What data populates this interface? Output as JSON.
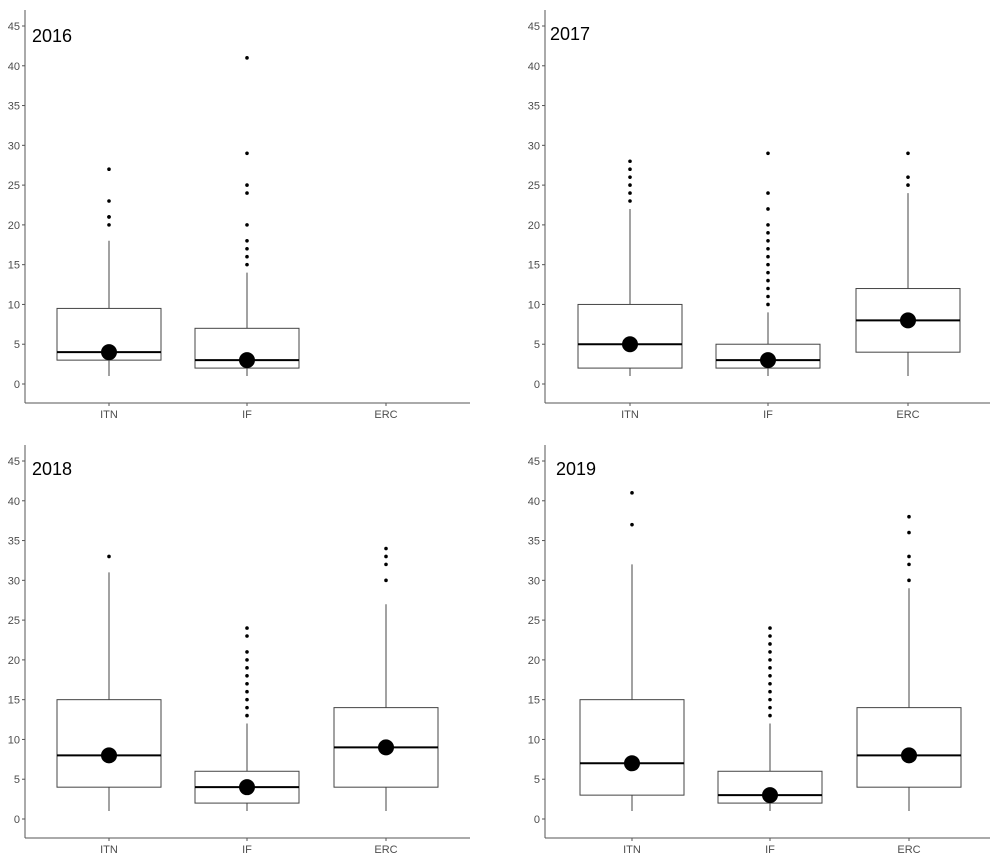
{
  "figure": {
    "background": "#ffffff",
    "box_stroke": "#444444",
    "median_color": "#000000",
    "mean_marker_color": "#000000",
    "outlier_color": "#000000",
    "axis_color": "#555555"
  },
  "chart_data": [
    {
      "type": "box",
      "panel_label": "2016",
      "categories": [
        "ITN",
        "IF",
        "ERC"
      ],
      "ylim": [
        -2,
        47
      ],
      "yticks": [
        0,
        5,
        10,
        15,
        20,
        25,
        30,
        35,
        40,
        45
      ],
      "grid": false,
      "boxes": [
        {
          "category": "ITN",
          "whisker_low": 1,
          "q1": 3,
          "median": 4,
          "q3": 9.5,
          "whisker_high": 18,
          "mean": 4,
          "outliers": [
            20,
            21,
            21,
            23,
            27
          ]
        },
        {
          "category": "IF",
          "whisker_low": 1,
          "q1": 2,
          "median": 3,
          "q3": 7,
          "whisker_high": 14,
          "mean": 3,
          "outliers": [
            15,
            16,
            17,
            18,
            20,
            24,
            25,
            29,
            41
          ]
        },
        {
          "category": "ERC",
          "whisker_low": null,
          "q1": null,
          "median": null,
          "q3": null,
          "whisker_high": null,
          "mean": null,
          "outliers": []
        }
      ]
    },
    {
      "type": "box",
      "panel_label": "2017",
      "categories": [
        "ITN",
        "IF",
        "ERC"
      ],
      "ylim": [
        -2,
        47
      ],
      "yticks": [
        0,
        5,
        10,
        15,
        20,
        25,
        30,
        35,
        40,
        45
      ],
      "grid": false,
      "boxes": [
        {
          "category": "ITN",
          "whisker_low": 1,
          "q1": 2,
          "median": 5,
          "q3": 10,
          "whisker_high": 22,
          "mean": 5,
          "outliers": [
            23,
            24,
            25,
            26,
            27,
            28
          ]
        },
        {
          "category": "IF",
          "whisker_low": 1,
          "q1": 2,
          "median": 3,
          "q3": 5,
          "whisker_high": 9,
          "mean": 3,
          "outliers": [
            10,
            11,
            12,
            13,
            14,
            15,
            16,
            17,
            18,
            19,
            20,
            22,
            24,
            29
          ]
        },
        {
          "category": "ERC",
          "whisker_low": 1,
          "q1": 4,
          "median": 8,
          "q3": 12,
          "whisker_high": 24,
          "mean": 8,
          "outliers": [
            25,
            26,
            29
          ]
        }
      ]
    },
    {
      "type": "box",
      "panel_label": "2018",
      "categories": [
        "ITN",
        "IF",
        "ERC"
      ],
      "ylim": [
        -2,
        47
      ],
      "yticks": [
        0,
        5,
        10,
        15,
        20,
        25,
        30,
        35,
        40,
        45
      ],
      "grid": false,
      "boxes": [
        {
          "category": "ITN",
          "whisker_low": 1,
          "q1": 4,
          "median": 8,
          "q3": 15,
          "whisker_high": 31,
          "mean": 8,
          "outliers": [
            33
          ]
        },
        {
          "category": "IF",
          "whisker_low": 1,
          "q1": 2,
          "median": 4,
          "q3": 6,
          "whisker_high": 12,
          "mean": 4,
          "outliers": [
            13,
            14,
            15,
            16,
            17,
            18,
            19,
            20,
            21,
            23,
            24
          ]
        },
        {
          "category": "ERC",
          "whisker_low": 1,
          "q1": 4,
          "median": 9,
          "q3": 14,
          "whisker_high": 27,
          "mean": 9,
          "outliers": [
            30,
            32,
            33,
            34
          ]
        }
      ]
    },
    {
      "type": "box",
      "panel_label": "2019",
      "categories": [
        "ITN",
        "IF",
        "ERC"
      ],
      "ylim": [
        -2,
        47
      ],
      "yticks": [
        0,
        5,
        10,
        15,
        20,
        25,
        30,
        35,
        40,
        45
      ],
      "grid": false,
      "boxes": [
        {
          "category": "ITN",
          "whisker_low": 1,
          "q1": 3,
          "median": 7,
          "q3": 15,
          "whisker_high": 32,
          "mean": 7,
          "outliers": [
            37,
            41
          ]
        },
        {
          "category": "IF",
          "whisker_low": 1,
          "q1": 2,
          "median": 3,
          "q3": 6,
          "whisker_high": 12,
          "mean": 3,
          "outliers": [
            13,
            14,
            15,
            16,
            17,
            18,
            19,
            20,
            21,
            22,
            23,
            24
          ]
        },
        {
          "category": "ERC",
          "whisker_low": 1,
          "q1": 4,
          "median": 8,
          "q3": 14,
          "whisker_high": 29,
          "mean": 8,
          "outliers": [
            30,
            32,
            33,
            36,
            38
          ]
        }
      ]
    }
  ]
}
